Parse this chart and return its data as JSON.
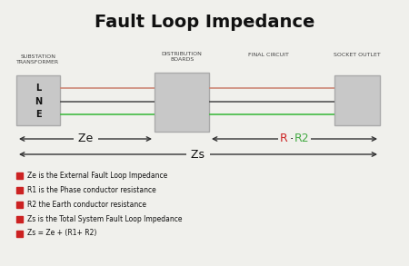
{
  "title": "Fault Loop Impedance",
  "title_fontsize": 14,
  "title_fontweight": "bold",
  "background_color": "#f0f0ec",
  "box_color": "#c8c8c8",
  "box_edge_color": "#aaaaaa",
  "line_color_red": "#cc8877",
  "line_color_green": "#44bb44",
  "line_color_dark": "#555555",
  "labels_top": [
    "SUBSTATION\nTRANSFORMER",
    "DISTRIBUTION\nBOARDS",
    "FINAL CIRCUIT",
    "SOCKET OUTLET"
  ],
  "lne_labels": [
    "L",
    "N",
    "E"
  ],
  "ze_label": "Ze",
  "zs_label": "Zs",
  "legend_items": [
    {
      "color": "#cc2222",
      "text": "Ze is the External Fault Loop Impedance"
    },
    {
      "color": "#cc2222",
      "text": "R1 is the Phase conductor resistance"
    },
    {
      "color": "#cc2222",
      "text": "R2 the Earth conductor resistance"
    },
    {
      "color": "#cc2222",
      "text": "Zs is the Total System Fault Loop Impedance"
    },
    {
      "color": "#cc2222",
      "text": "Zs = Ze + (R1+ R2)"
    }
  ]
}
